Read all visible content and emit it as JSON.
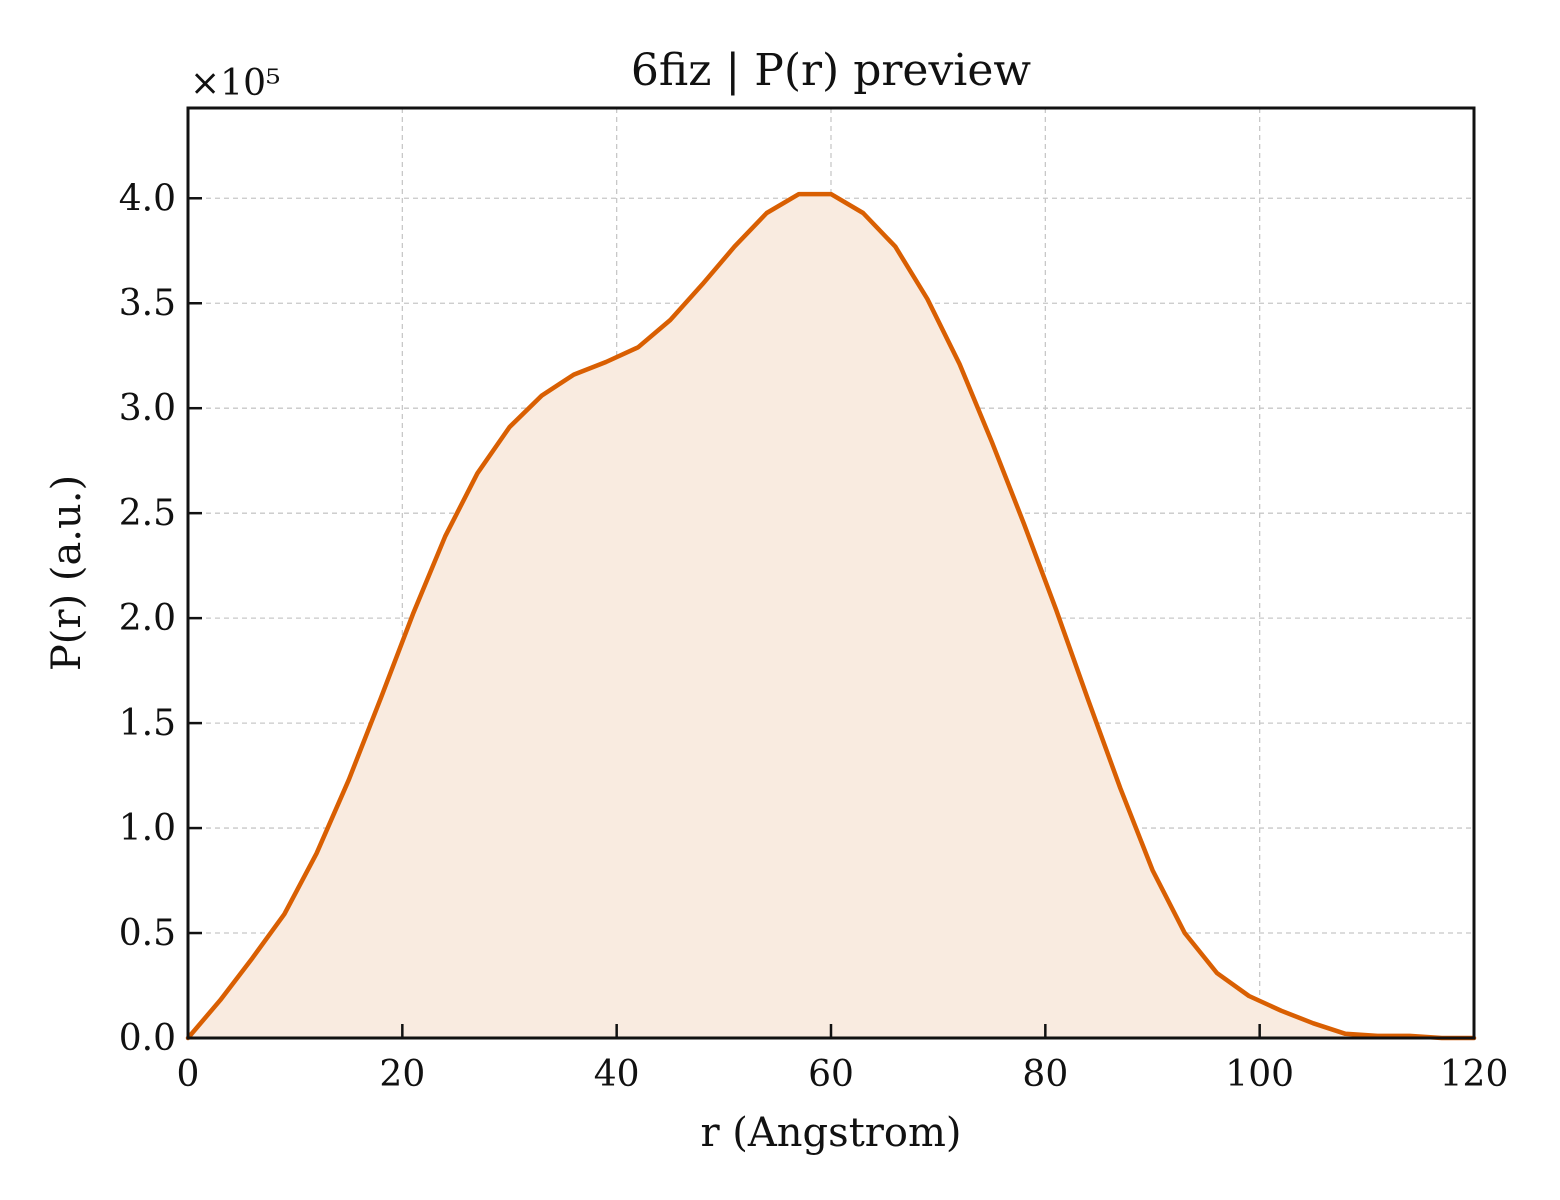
{
  "chart_data": {
    "type": "area",
    "title": "6fiz | P(r) preview",
    "xlabel": "r (Angstrom)",
    "ylabel": "P(r) (a.u.)",
    "y_multiplier_label": "×10⁵",
    "xlim": [
      0,
      120
    ],
    "ylim": [
      0,
      4.43
    ],
    "x_ticks": [
      0,
      20,
      40,
      60,
      80,
      100,
      120
    ],
    "x_tick_labels": [
      "0",
      "20",
      "40",
      "60",
      "80",
      "100",
      "120"
    ],
    "y_ticks": [
      0,
      0.5,
      1.0,
      1.5,
      2.0,
      2.5,
      3.0,
      3.5,
      4.0
    ],
    "y_tick_labels": [
      "0.0",
      "0.5",
      "1.0",
      "1.5",
      "2.0",
      "2.5",
      "3.0",
      "3.5",
      "4.0"
    ],
    "grid": true,
    "line_color": "#d95f02",
    "fill_color": "#f9ebe0",
    "series": [
      {
        "x": [
          0,
          3,
          6,
          9,
          12,
          15,
          18,
          21,
          24,
          27,
          30,
          33,
          36,
          39,
          42,
          45,
          48,
          51,
          54,
          57,
          60,
          63,
          66,
          69,
          72,
          75,
          78,
          81,
          84,
          87,
          90,
          93,
          96,
          99,
          102,
          105,
          108,
          111,
          114,
          117,
          120
        ],
        "y": [
          0.0,
          0.18,
          0.38,
          0.59,
          0.88,
          1.23,
          1.62,
          2.02,
          2.39,
          2.69,
          2.91,
          3.06,
          3.16,
          3.22,
          3.29,
          3.42,
          3.59,
          3.77,
          3.93,
          4.02,
          4.02,
          3.93,
          3.77,
          3.52,
          3.21,
          2.84,
          2.45,
          2.04,
          1.61,
          1.19,
          0.8,
          0.5,
          0.31,
          0.2,
          0.13,
          0.07,
          0.02,
          0.01,
          0.01,
          0.0,
          0.0
        ]
      }
    ]
  }
}
